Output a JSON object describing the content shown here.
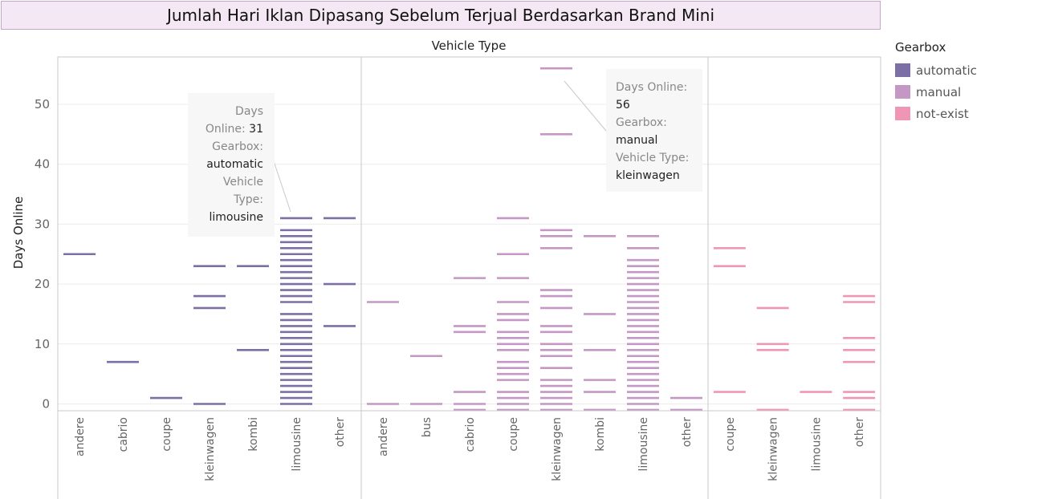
{
  "title": "Jumlah Hari Iklan Dipasang Sebelum Terjual Berdasarkan Brand Mini",
  "legend": {
    "title": "Gearbox",
    "items": [
      {
        "label": "automatic",
        "color": "#7b6fa6"
      },
      {
        "label": "manual",
        "color": "#c497c4"
      },
      {
        "label": "not-exist",
        "color": "#ef96b7"
      }
    ]
  },
  "tooltips": [
    {
      "label1": "Days",
      "label1b": "Online:",
      "value1": "31",
      "label2": "Gearbox:",
      "value2": "automatic",
      "label3": "Vehicle",
      "label3b": "Type:",
      "value3": "limousine"
    },
    {
      "label1": "Days Online:",
      "value1": "56",
      "label2": "Gearbox:",
      "value2": "manual",
      "label3": "Vehicle Type:",
      "value3": "kleinwagen"
    }
  ],
  "chart_data": {
    "type": "scatter",
    "title": "Jumlah Hari Iklan Dipasang Sebelum Terjual Berdasarkan Brand Mini",
    "column_header": "Vehicle Type",
    "ylabel": "Days Online",
    "ylim": [
      -1,
      58
    ],
    "yticks": [
      0,
      10,
      20,
      30,
      40,
      50
    ],
    "mark": "dash",
    "panels": [
      {
        "gearbox": "automatic",
        "categories": [
          {
            "name": "andere",
            "values": [
              25
            ]
          },
          {
            "name": "cabrio",
            "values": [
              7
            ]
          },
          {
            "name": "coupe",
            "values": [
              1
            ]
          },
          {
            "name": "kleinwagen",
            "values": [
              0,
              16,
              18,
              23
            ]
          },
          {
            "name": "kombi",
            "values": [
              9,
              23
            ]
          },
          {
            "name": "limousine",
            "values": [
              0,
              1,
              2,
              3,
              4,
              5,
              6,
              7,
              8,
              9,
              10,
              11,
              12,
              13,
              14,
              15,
              17,
              18,
              19,
              20,
              21,
              22,
              23,
              24,
              25,
              26,
              27,
              28,
              29,
              31
            ]
          },
          {
            "name": "other",
            "values": [
              13,
              20,
              31
            ]
          }
        ]
      },
      {
        "gearbox": "manual",
        "categories": [
          {
            "name": "andere",
            "values": [
              0,
              17
            ]
          },
          {
            "name": "bus",
            "values": [
              0,
              8
            ]
          },
          {
            "name": "cabrio",
            "values": [
              -1,
              0,
              2,
              12,
              13,
              21
            ]
          },
          {
            "name": "coupe",
            "values": [
              -1,
              0,
              1,
              2,
              4,
              5,
              6,
              7,
              9,
              10,
              11,
              12,
              14,
              15,
              17,
              21,
              25,
              31
            ]
          },
          {
            "name": "kleinwagen",
            "values": [
              -1,
              0,
              1,
              2,
              3,
              4,
              6,
              8,
              9,
              10,
              12,
              13,
              16,
              18,
              19,
              26,
              28,
              29,
              45,
              56
            ]
          },
          {
            "name": "kombi",
            "values": [
              -1,
              2,
              4,
              9,
              15,
              28
            ]
          },
          {
            "name": "limousine",
            "values": [
              -1,
              0,
              1,
              2,
              3,
              4,
              5,
              6,
              7,
              8,
              9,
              10,
              11,
              12,
              13,
              14,
              15,
              16,
              17,
              18,
              19,
              20,
              21,
              22,
              23,
              24,
              26,
              28
            ]
          },
          {
            "name": "other",
            "values": [
              -1,
              1
            ]
          }
        ]
      },
      {
        "gearbox": "not-exist",
        "categories": [
          {
            "name": "coupe",
            "values": [
              2,
              23,
              26
            ]
          },
          {
            "name": "kleinwagen",
            "values": [
              -1,
              9,
              10,
              16
            ]
          },
          {
            "name": "limousine",
            "values": [
              2
            ]
          },
          {
            "name": "other",
            "values": [
              -1,
              1,
              2,
              7,
              9,
              11,
              17,
              18
            ]
          }
        ]
      }
    ]
  }
}
